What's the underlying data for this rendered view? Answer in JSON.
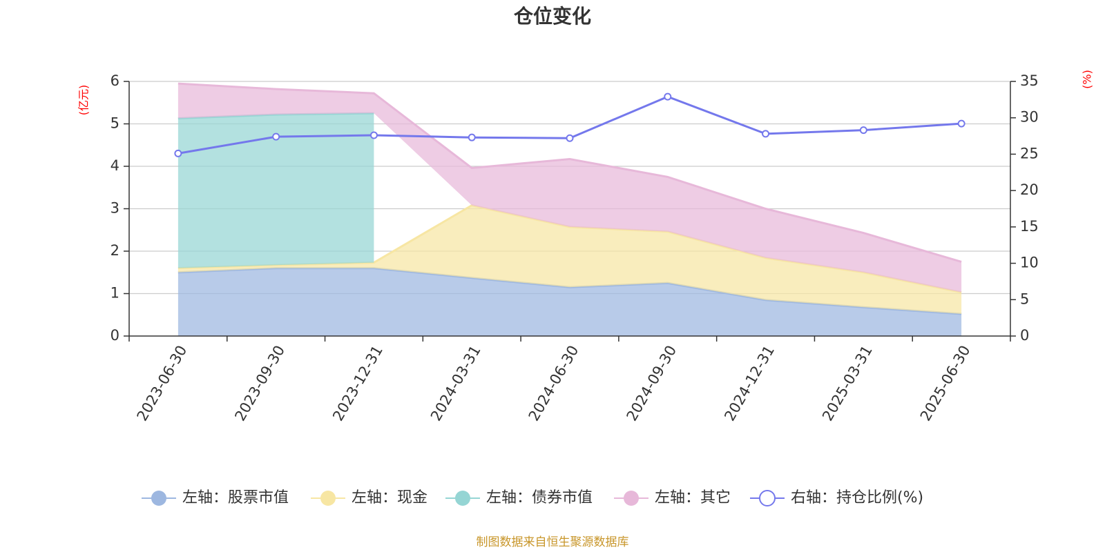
{
  "chart_data": {
    "type": "area",
    "title": "仓位变化",
    "left_axis_unit": "(亿元)",
    "right_axis_unit": "(%)",
    "categories": [
      "2023-06-30",
      "2023-09-30",
      "2023-12-31",
      "2024-03-31",
      "2024-06-30",
      "2024-09-30",
      "2024-12-31",
      "2025-03-31",
      "2025-06-30"
    ],
    "left_ylim": [
      0,
      6
    ],
    "left_ticks": [
      "0",
      "1",
      "2",
      "3",
      "4",
      "5",
      "6"
    ],
    "right_ylim": [
      0,
      35
    ],
    "right_ticks": [
      "0",
      "5",
      "10",
      "15",
      "20",
      "25",
      "30",
      "35"
    ],
    "grid": true,
    "stacked": true,
    "legend_position": "bottom",
    "series": [
      {
        "name": "左轴：股票市值",
        "axis": "left",
        "type": "area",
        "color": "#9db7e0",
        "values": [
          1.5,
          1.6,
          1.6,
          1.37,
          1.15,
          1.25,
          0.85,
          0.68,
          0.52
        ]
      },
      {
        "name": "左轴：现金",
        "axis": "left",
        "type": "area",
        "color": "#f7e6a3",
        "values": [
          0.1,
          0.07,
          0.13,
          1.71,
          1.42,
          1.21,
          0.99,
          0.82,
          0.51
        ]
      },
      {
        "name": "左轴：债券市值",
        "axis": "left",
        "type": "area",
        "color": "#95d5d4",
        "values": [
          3.53,
          3.55,
          3.52,
          0,
          0,
          0,
          0,
          0,
          0
        ]
      },
      {
        "name": "左轴：其它",
        "axis": "left",
        "type": "area",
        "color": "#e7b8d9",
        "values": [
          0.82,
          0.6,
          0.47,
          0.88,
          1.6,
          1.29,
          1.16,
          0.93,
          0.72
        ]
      },
      {
        "name": "右轴：持仓比例(%)",
        "axis": "right",
        "type": "line",
        "color": "#7478ec",
        "values": [
          25.1,
          27.4,
          27.6,
          27.3,
          27.2,
          32.9,
          27.8,
          28.3,
          29.2
        ]
      }
    ]
  },
  "source": "制图数据来自恒生聚源数据库"
}
